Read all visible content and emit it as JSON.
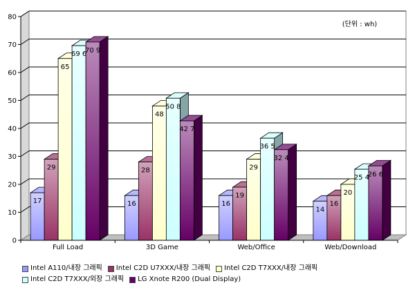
{
  "chart_data": {
    "type": "bar",
    "unit_note": "(단위 : wh)",
    "categories": [
      "Full Load",
      "3D Game",
      "Web/Office",
      "Web/Download"
    ],
    "ylim": [
      0,
      80
    ],
    "yticks": [
      0,
      10,
      20,
      30,
      40,
      50,
      60,
      70,
      80
    ],
    "grid": true,
    "legend_position": "bottom",
    "series": [
      {
        "name": "Intel A110/내장 그래픽",
        "values": [
          17,
          16,
          16,
          14
        ],
        "labels": [
          "17",
          "16",
          "16",
          "14"
        ],
        "color": "#9999ff"
      },
      {
        "name": "Intel C2D U7XXX/내장 그래픽",
        "values": [
          29,
          28,
          19,
          16
        ],
        "labels": [
          "29",
          "28",
          "19",
          "16"
        ],
        "color": "#993366"
      },
      {
        "name": "Intel C2D T7XXX/내장 그래픽",
        "values": [
          65,
          48,
          29,
          20
        ],
        "labels": [
          "65",
          "48",
          "29",
          "20"
        ],
        "color": "#ffffcc"
      },
      {
        "name": "Intel C2D T7XXX/외장 그래픽",
        "values": [
          69.6,
          50.8,
          36.5,
          25.4
        ],
        "labels": [
          "69 6",
          "50 8",
          "36 5",
          "25 4"
        ],
        "color": "#ccffff"
      },
      {
        "name": "LG Xnote R200 (Dual Display)",
        "values": [
          70.9,
          42.7,
          32.4,
          26.6
        ],
        "labels": [
          "70 9",
          "42 7",
          "32 4",
          "26 6"
        ],
        "color": "#660066"
      }
    ]
  }
}
